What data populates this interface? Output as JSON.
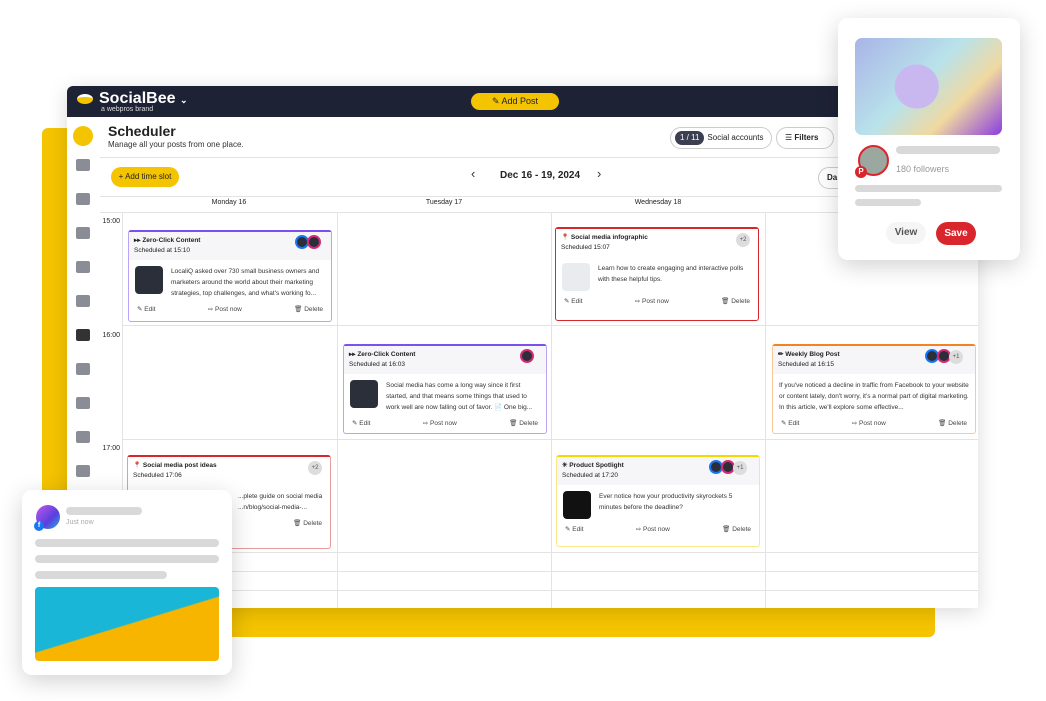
{
  "app": {
    "name": "SocialBee",
    "tagline": "a webpros brand",
    "add_post": "Add Post"
  },
  "header": {
    "title": "Scheduler",
    "subtitle": "Manage all your posts from one place.",
    "accounts_count": "1 / 11",
    "accounts_label": "Social accounts",
    "filters": "Filters",
    "view_toggle": "Da"
  },
  "toolbar": {
    "add_time_slot": "+ Add time slot",
    "date_range": "Dec 16 - 19, 2024",
    "prev": "‹",
    "next": "›"
  },
  "days": [
    "Monday 16",
    "Tuesday 17",
    "Wednesday 18"
  ],
  "times": [
    "15:00",
    "16:00",
    "17:00"
  ],
  "sidebar_icons": [
    "compose-icon",
    "dashboard-icon",
    "folder-icon",
    "bot-icon",
    "calendar-edit-icon",
    "calendar-icon",
    "calendar-active-icon",
    "analytics-icon",
    "inbox-icon",
    "chat-icon",
    "rocket-icon"
  ],
  "actions": {
    "edit": "✎ Edit",
    "post_now": "⇨ Post now",
    "delete": "🗑 Delete"
  },
  "posts": [
    {
      "category": "▸▸ Zero-Click Content",
      "scheduled": "Scheduled at 15:10",
      "text": "LocaliQ asked over 730 small business owners and marketers around the world about their marketing strategies, top challenges, and what's working fo...",
      "color": "#7b4ff0"
    },
    {
      "category": "▸▸ Zero-Click Content",
      "scheduled": "Scheduled at 16:03",
      "text": "Social media has come a long way since it first started, and that means some things that used to work well are now falling out of favor. 📄 One big...",
      "color": "#7b4ff0"
    },
    {
      "category": "📍 Social media infographic",
      "scheduled": "Scheduled 15:07",
      "text": "Learn how to create engaging and interactive polls with these helpful tips.",
      "color": "#d9262c",
      "extra": "+2"
    },
    {
      "category": "✏ Weekly Blog Post",
      "scheduled": "Scheduled at 16:15",
      "text": "If you've noticed a decline in traffic from Facebook to your website or content lately, don't worry, it's a normal part of digital marketing. In this article, we'll explore some effective...",
      "color": "#f58220",
      "extra": "+1"
    },
    {
      "category": "📍 Social media post ideas",
      "scheduled": "Scheduled 17:06",
      "text": "...plete guide on social media ...n/blog/social-media-...",
      "color": "#d9262c",
      "extra": "+2"
    },
    {
      "category": "✳ Product Spotlight",
      "scheduled": "Scheduled at 17:20",
      "text": "Ever notice how your productivity skyrockets 5 minutes before the deadline?",
      "color": "#f5d800",
      "extra": "+1"
    }
  ],
  "pinterest_card": {
    "followers": "180 followers",
    "view": "View",
    "save": "Save",
    "accent": "#d9262c"
  },
  "facebook_card": {
    "time": "Just now"
  },
  "colors": {
    "brand_yellow": "#f5c400",
    "topbar": "#1e2235"
  }
}
